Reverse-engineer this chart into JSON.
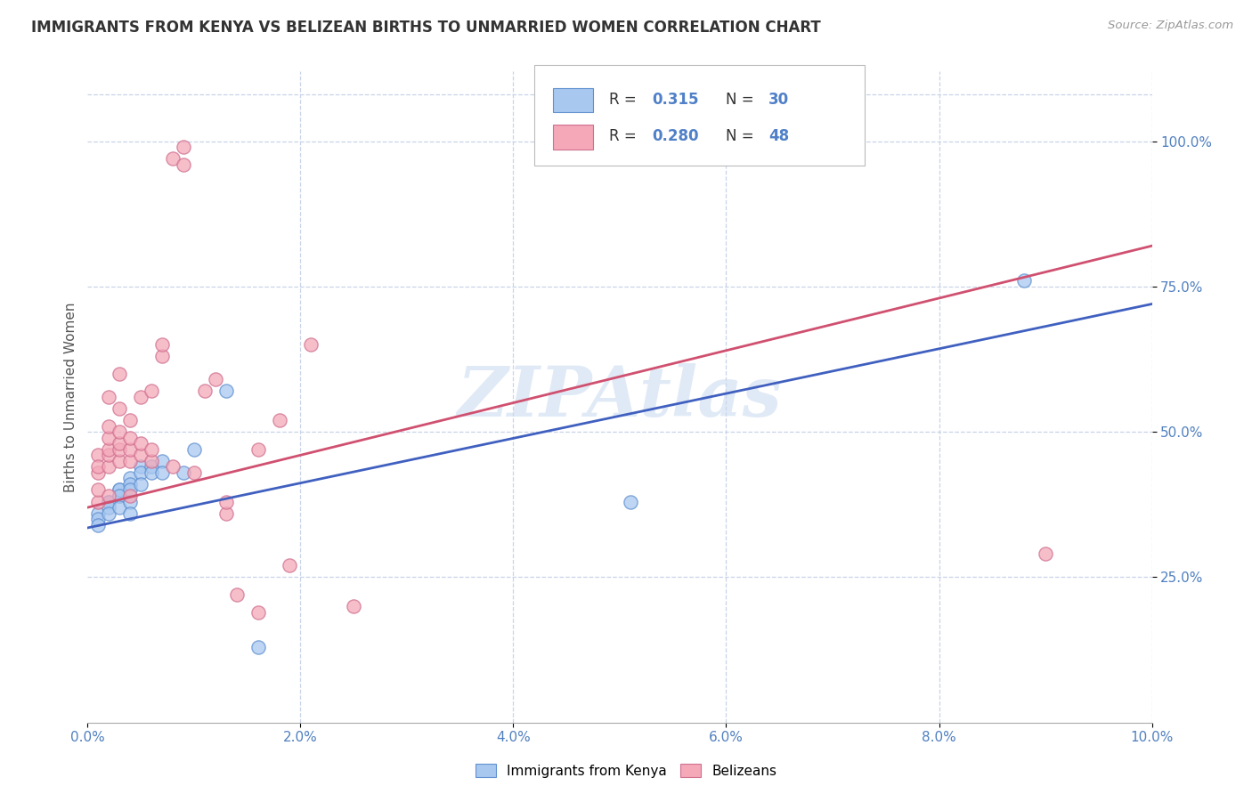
{
  "title": "IMMIGRANTS FROM KENYA VS BELIZEAN BIRTHS TO UNMARRIED WOMEN CORRELATION CHART",
  "source": "Source: ZipAtlas.com",
  "ylabel": "Births to Unmarried Women",
  "y_ticks": [
    0.25,
    0.5,
    0.75,
    1.0
  ],
  "y_tick_labels": [
    "25.0%",
    "50.0%",
    "75.0%",
    "100.0%"
  ],
  "x_ticks": [
    0.0,
    0.02,
    0.04,
    0.06,
    0.08,
    0.1
  ],
  "blue_color": "#a8c8f0",
  "pink_color": "#f4a8b8",
  "blue_edge_color": "#6090d0",
  "pink_edge_color": "#d07090",
  "blue_line_color": "#4060c0",
  "pink_line_color": "#d05070",
  "watermark": "ZIPAtlas",
  "watermark_color": "#ccdcf0",
  "blue_points_x": [
    0.001,
    0.001,
    0.001,
    0.002,
    0.002,
    0.002,
    0.002,
    0.003,
    0.003,
    0.003,
    0.003,
    0.003,
    0.004,
    0.004,
    0.004,
    0.004,
    0.004,
    0.005,
    0.005,
    0.005,
    0.006,
    0.006,
    0.007,
    0.007,
    0.009,
    0.01,
    0.013,
    0.016,
    0.051,
    0.088
  ],
  "blue_points_y": [
    0.36,
    0.35,
    0.34,
    0.38,
    0.38,
    0.37,
    0.36,
    0.39,
    0.4,
    0.4,
    0.39,
    0.37,
    0.42,
    0.41,
    0.4,
    0.38,
    0.36,
    0.44,
    0.43,
    0.41,
    0.44,
    0.43,
    0.45,
    0.43,
    0.43,
    0.47,
    0.57,
    0.13,
    0.38,
    0.76
  ],
  "pink_points_x": [
    0.001,
    0.001,
    0.001,
    0.001,
    0.001,
    0.002,
    0.002,
    0.002,
    0.002,
    0.002,
    0.002,
    0.002,
    0.003,
    0.003,
    0.003,
    0.003,
    0.003,
    0.003,
    0.004,
    0.004,
    0.004,
    0.004,
    0.004,
    0.005,
    0.005,
    0.005,
    0.006,
    0.006,
    0.006,
    0.007,
    0.007,
    0.008,
    0.008,
    0.009,
    0.009,
    0.01,
    0.011,
    0.012,
    0.013,
    0.013,
    0.014,
    0.016,
    0.016,
    0.018,
    0.019,
    0.021,
    0.025,
    0.09
  ],
  "pink_points_y": [
    0.38,
    0.4,
    0.43,
    0.46,
    0.44,
    0.44,
    0.46,
    0.47,
    0.49,
    0.51,
    0.56,
    0.39,
    0.45,
    0.47,
    0.48,
    0.5,
    0.54,
    0.6,
    0.45,
    0.47,
    0.49,
    0.52,
    0.39,
    0.46,
    0.48,
    0.56,
    0.45,
    0.47,
    0.57,
    0.63,
    0.65,
    0.44,
    0.97,
    0.96,
    0.99,
    0.43,
    0.57,
    0.59,
    0.36,
    0.38,
    0.22,
    0.19,
    0.47,
    0.52,
    0.27,
    0.65,
    0.2,
    0.29
  ],
  "xlim": [
    0.0,
    0.1
  ],
  "ylim": [
    0.0,
    1.12
  ],
  "blue_line_x0": 0.0,
  "blue_line_y0": 0.335,
  "blue_line_x1": 0.1,
  "blue_line_y1": 0.72,
  "pink_line_x0": 0.0,
  "pink_line_y0": 0.37,
  "pink_line_x1": 0.1,
  "pink_line_y1": 0.82
}
